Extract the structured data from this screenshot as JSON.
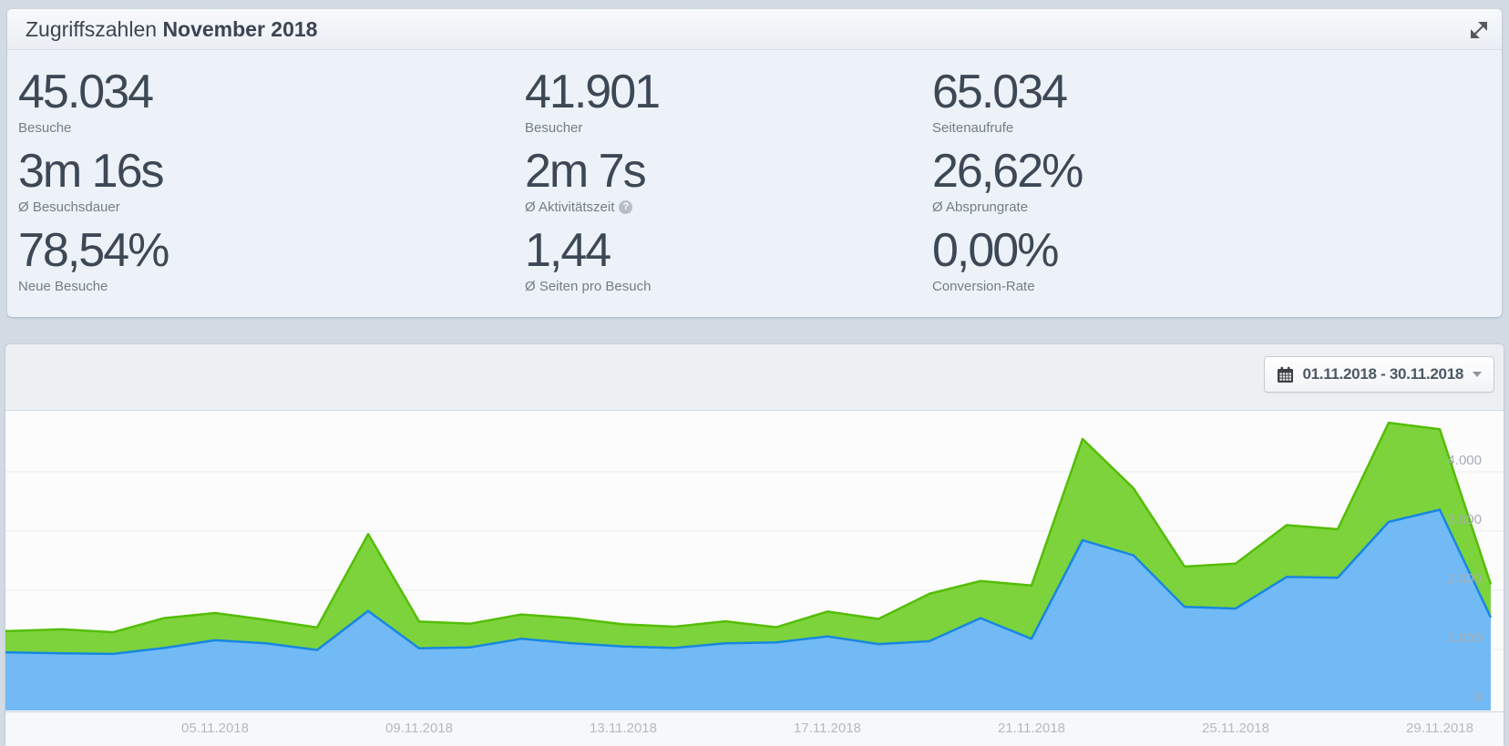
{
  "summary_panel": {
    "title_prefix": "Zugriffszahlen",
    "title_period": "November 2018",
    "columns": [
      {
        "stats": [
          {
            "value": "45.034",
            "label": "Besuche"
          },
          {
            "value": "3m 16s",
            "label": "Ø Besuchsdauer"
          },
          {
            "value": "78,54%",
            "label": "Neue Besuche"
          }
        ]
      },
      {
        "stats": [
          {
            "value": "41.901",
            "label": "Besucher"
          },
          {
            "value": "2m 7s",
            "label": "Ø Aktivitätszeit",
            "help_glyph": "?"
          },
          {
            "value": "1,44",
            "label": "Ø Seiten pro Besuch"
          }
        ]
      },
      {
        "stats": [
          {
            "value": "65.034",
            "label": "Seitenaufrufe"
          },
          {
            "value": "26,62%",
            "label": "Ø Absprungrate"
          },
          {
            "value": "0,00%",
            "label": "Conversion-Rate"
          }
        ]
      }
    ]
  },
  "chart_panel": {
    "date_range": "01.11.2018 - 30.11.2018"
  },
  "chart_data": {
    "type": "area",
    "x_unit": "Tag (November 2018)",
    "ylim": [
      0,
      5100
    ],
    "grid": true,
    "legend": "none",
    "x_ticks": [
      {
        "day": 5,
        "label": "05.11.2018"
      },
      {
        "day": 9,
        "label": "09.11.2018"
      },
      {
        "day": 13,
        "label": "13.11.2018"
      },
      {
        "day": 17,
        "label": "17.11.2018"
      },
      {
        "day": 21,
        "label": "21.11.2018"
      },
      {
        "day": 25,
        "label": "25.11.2018"
      },
      {
        "day": 29,
        "label": "29.11.2018"
      }
    ],
    "y_ticks": [
      {
        "value": 0,
        "label": "0"
      },
      {
        "value": 1000,
        "label": "1.000"
      },
      {
        "value": 2000,
        "label": "2.000"
      },
      {
        "value": 3000,
        "label": "3.000"
      },
      {
        "value": 4000,
        "label": "4.000"
      }
    ],
    "series": [
      {
        "name": "Seitenaufrufe",
        "fill": "#7dd33c",
        "stroke": "#54be06",
        "values": [
          1310,
          1340,
          1290,
          1530,
          1615,
          1500,
          1370,
          2950,
          1470,
          1435,
          1590,
          1530,
          1425,
          1385,
          1475,
          1375,
          1640,
          1515,
          1940,
          2155,
          2080,
          4555,
          3720,
          2400,
          2450,
          3100,
          3030,
          4830,
          4720,
          2100
        ]
      },
      {
        "name": "Besuche",
        "fill": "#72baf5",
        "stroke": "#1787e0",
        "values": [
          950,
          935,
          925,
          1025,
          1155,
          1105,
          990,
          1650,
          1020,
          1035,
          1180,
          1105,
          1050,
          1025,
          1105,
          1120,
          1220,
          1090,
          1140,
          1530,
          1180,
          2845,
          2590,
          1720,
          1690,
          2225,
          2210,
          3155,
          3360,
          1540
        ]
      }
    ]
  }
}
